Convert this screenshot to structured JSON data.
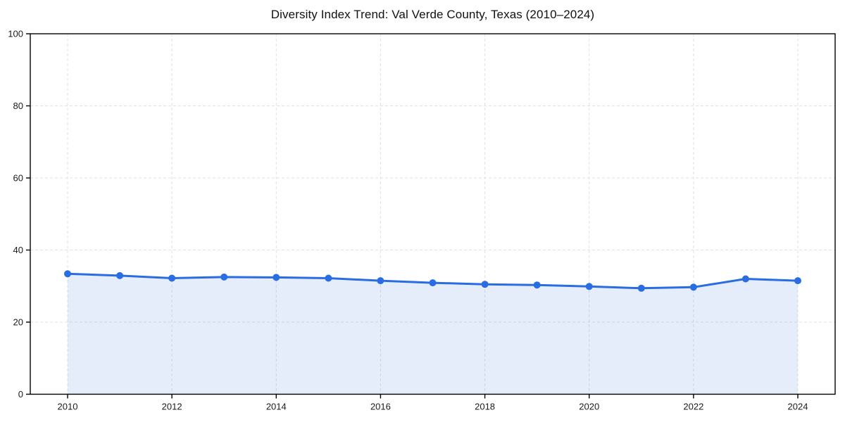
{
  "chart_data": {
    "type": "line",
    "title": "Diversity Index Trend: Val Verde County, Texas (2010–2024)",
    "x": [
      2010,
      2011,
      2012,
      2013,
      2014,
      2015,
      2016,
      2017,
      2018,
      2019,
      2020,
      2021,
      2022,
      2023,
      2024
    ],
    "series": [
      {
        "name": "Diversity Index",
        "values": [
          33.4,
          32.9,
          32.2,
          32.5,
          32.4,
          32.2,
          31.5,
          30.9,
          30.5,
          30.3,
          29.9,
          29.4,
          29.7,
          32.0,
          31.5
        ]
      }
    ],
    "xlabel": "",
    "ylabel": "",
    "xlim": [
      2010,
      2024
    ],
    "ylim": [
      0,
      100
    ],
    "yticks": [
      0,
      20,
      40,
      60,
      80,
      100
    ],
    "xtick_labels": [
      "2010",
      "2012",
      "2014",
      "2016",
      "2018",
      "2020",
      "2022",
      "2024"
    ],
    "grid": "dashed",
    "legend": "none",
    "colors": {
      "line": "#2a6de2",
      "marker": "#2a6de2",
      "area_fill": "rgba(42,109,226,0.12)",
      "grid_line": "#e2e2e2",
      "spine": "#000000",
      "tick_label": "#1a1a1a",
      "title": "#111111",
      "background": "#ffffff"
    }
  }
}
